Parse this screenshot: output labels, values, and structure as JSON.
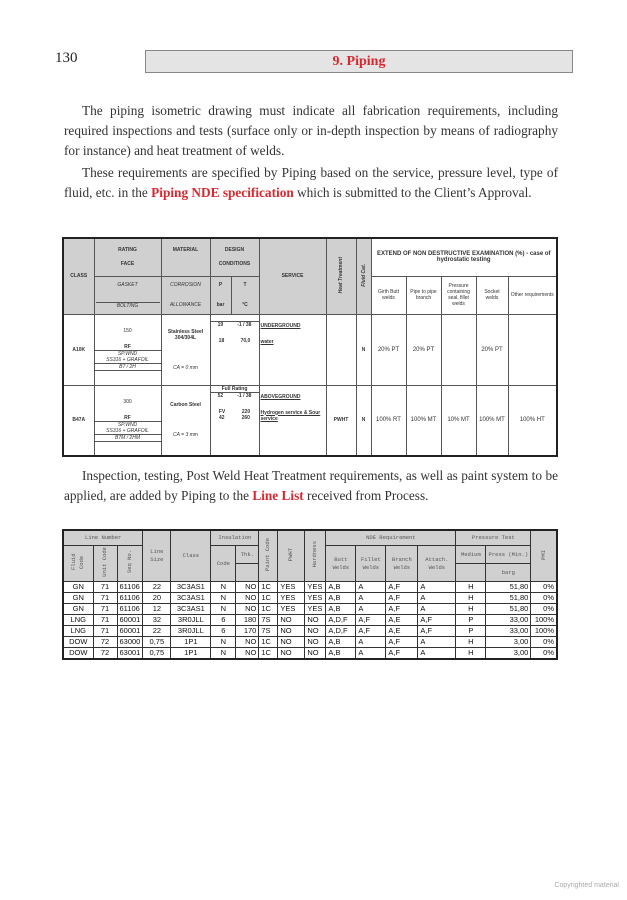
{
  "page_number": "130",
  "chapter_title": "9. Piping",
  "para1": "The piping isometric drawing must indicate all fabrication requirements, including required inspections and tests (surface only or in-depth inspection by means of radiography for instance) and heat treatment of welds.",
  "para2": {
    "before": "These requirements are specified by Piping based on the service, pressure level, type of fluid, etc. in the ",
    "link": "Piping NDE specification",
    "after": " which is submitted to the Client’s Approval."
  },
  "para3": {
    "before": "Inspection, testing, Post Weld Heat Treatment requirements, as well as paint system to be applied, are added by Piping to the ",
    "link": "Line List",
    "after": " received from Process."
  },
  "table1": {
    "headers": {
      "class": "CLASS",
      "rating": "RATING",
      "face": "FACE",
      "gasket": "GASKET",
      "bolting": "BOLTING",
      "material": "MATERIAL",
      "corrosion": "CORROSION",
      "allowance": "ALLOWANCE",
      "design": "DESIGN",
      "conditions": "CONDITIONS",
      "p": "P",
      "t": "T",
      "bar": "bar",
      "degc": "°C",
      "service": "SERVICE",
      "heat": "Heat Treatment",
      "fluid": "Fluid Cat.",
      "nde": "EXTEND OF NON DESTRUCTIVE EXAMINATION  (%) - case of hydrostatic testing",
      "girth": "Girth Butt welds",
      "pipe": "Pipe to pipe branch",
      "pressure": "Pressure containing seal, fillet welds",
      "socket": "Socket welds",
      "other": "Other requirements"
    },
    "rows": [
      {
        "class": "A10K",
        "rating": "150",
        "face": "RF",
        "gasket1": "SP.WND",
        "gasket2": "SS316 + GRAFOIL",
        "bolting": "B7 / 2H",
        "material": "Stainless Steel 304/304L",
        "ca": "CA = 0 mm",
        "full": "",
        "p1": "19",
        "t1": "-1 / 38",
        "p2": "18",
        "t2": "70,0",
        "p3": "",
        "t3": "",
        "service1": "UNDERGROUND",
        "service2": "water",
        "heat": "",
        "fluid": "N",
        "girth": "20% PT",
        "pipe": "20% PT",
        "pressure": "",
        "socket": "20% PT",
        "other": ""
      },
      {
        "class": "B47A",
        "rating": "300",
        "face": "RF",
        "gasket1": "SP.WND",
        "gasket2": "SS316 + GRAFOIL",
        "bolting": "B7M / 2HM",
        "material": "Carbon Steel",
        "ca": "CA = 3 mm",
        "full": "Full Rating",
        "p1": "52",
        "t1": "-1 / 38",
        "p2": "FV",
        "t2": "220",
        "p3": "42",
        "t3": "260",
        "service1": "ABOVEGROUND",
        "service2": "Hydrogen service & Sour service",
        "heat": "PWHT",
        "fluid": "N",
        "girth": "100% RT",
        "pipe": "100% MT",
        "pressure": "10% MT",
        "socket": "100% MT",
        "other": "100% HT"
      }
    ]
  },
  "table2": {
    "headers": {
      "line_number": "Line Number",
      "line_size": "Line Size",
      "class": "Class",
      "insulation": "Insulation",
      "paint": "Paint Code",
      "pwht": "PWHT",
      "hardness": "Hardness",
      "nde": "NDE Requirement",
      "pressure_test": "Pressure Test",
      "pmi": "PMI",
      "fluid": "Fluid Code",
      "unit": "Unit Code",
      "seq": "Seq No.",
      "code": "Code",
      "thk": "Thk.",
      "butt": "Butt Welds",
      "fillet": "Fillet Welds",
      "branch": "Branch Welds",
      "attach": "Attach. Welds",
      "medium": "Medium",
      "press": "Press (Min.)",
      "barg": "barg"
    },
    "rows": [
      [
        "GN",
        "71",
        "61106",
        "22",
        "3C3AS1",
        "N",
        "NO",
        "1C",
        "YES",
        "YES",
        "A,B",
        "A",
        "A,F",
        "A",
        "H",
        "51,80",
        "0%"
      ],
      [
        "GN",
        "71",
        "61106",
        "20",
        "3C3AS1",
        "N",
        "NO",
        "1C",
        "YES",
        "YES",
        "A,B",
        "A",
        "A,F",
        "A",
        "H",
        "51,80",
        "0%"
      ],
      [
        "GN",
        "71",
        "61106",
        "12",
        "3C3AS1",
        "N",
        "NO",
        "1C",
        "YES",
        "YES",
        "A,B",
        "A",
        "A,F",
        "A",
        "H",
        "51,80",
        "0%"
      ],
      [
        "LNG",
        "71",
        "60001",
        "32",
        "3R0JLL",
        "6",
        "180",
        "7S",
        "NO",
        "NO",
        "A,D,F",
        "A,F",
        "A,E",
        "A,F",
        "P",
        "33,00",
        "100%"
      ],
      [
        "LNG",
        "71",
        "60001",
        "22",
        "3R0JLL",
        "6",
        "170",
        "7S",
        "NO",
        "NO",
        "A,D,F",
        "A,F",
        "A,E",
        "A,F",
        "P",
        "33,00",
        "100%"
      ],
      [
        "DOW",
        "72",
        "63000",
        "0,75",
        "1P1",
        "N",
        "NO",
        "1C",
        "NO",
        "NO",
        "A,B",
        "A",
        "A,F",
        "A",
        "H",
        "3,00",
        "0%"
      ],
      [
        "DOW",
        "72",
        "63001",
        "0,75",
        "1P1",
        "N",
        "NO",
        "1C",
        "NO",
        "NO",
        "A,B",
        "A",
        "A,F",
        "A",
        "H",
        "3,00",
        "0%"
      ]
    ]
  },
  "footer": "Copyrighted material",
  "colors": {
    "accent": "#d9282f",
    "header_fill": "#d0d0d0"
  }
}
